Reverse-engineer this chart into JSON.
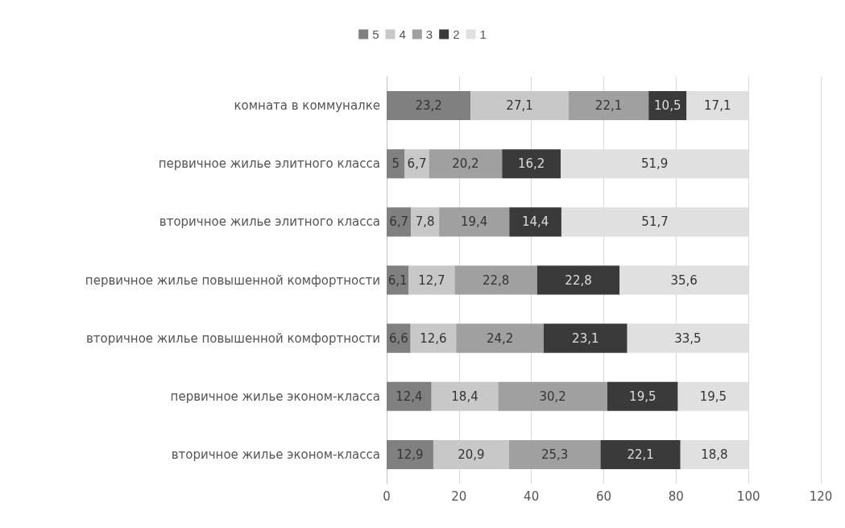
{
  "chart_data": {
    "type": "bar",
    "orientation": "horizontal",
    "stacked": true,
    "legend": "top",
    "grid": "x",
    "categories": [
      "комната в коммуналке",
      "первичное жилье элитного класса",
      "вторичное жилье элитного класса",
      "первичное жилье повышенной комфортности",
      "вторичное жилье повышенной комфортности",
      "первичное жилье эконом-класса",
      "вторичное жилье эконом-класса"
    ],
    "series": [
      {
        "name": "5",
        "color": "#808080",
        "values": [
          23.2,
          5,
          6.7,
          6.1,
          6.6,
          12.4,
          12.9
        ],
        "value_labels": [
          "23,2",
          "5",
          "6,7",
          "6,1",
          "6,6",
          "12,4",
          "12,9"
        ]
      },
      {
        "name": "4",
        "color": "#c8c8c8",
        "values": [
          27.1,
          6.7,
          7.8,
          12.7,
          12.6,
          18.4,
          20.9
        ],
        "value_labels": [
          "27,1",
          "6,7",
          "7,8",
          "12,7",
          "12,6",
          "18,4",
          "20,9"
        ]
      },
      {
        "name": "3",
        "color": "#a0a0a0",
        "values": [
          22.1,
          20.2,
          19.4,
          22.8,
          24.2,
          30.2,
          25.3
        ],
        "value_labels": [
          "22,1",
          "20,2",
          "19,4",
          "22,8",
          "24,2",
          "30,2",
          "25,3"
        ]
      },
      {
        "name": "2",
        "color": "#3a3a3a",
        "values": [
          10.5,
          16.2,
          14.4,
          22.8,
          23.1,
          19.5,
          22.1
        ],
        "value_labels": [
          "10,5",
          "16,2",
          "14,4",
          "22,8",
          "23,1",
          "19,5",
          "22,1"
        ]
      },
      {
        "name": "1",
        "color": "#e0e0e0",
        "values": [
          17.1,
          51.9,
          51.7,
          35.6,
          33.5,
          19.5,
          18.8
        ],
        "value_labels": [
          "17,1",
          "51,9",
          "51,7",
          "35,6",
          "33,5",
          "19,5",
          "18,8"
        ]
      }
    ],
    "xlim": [
      0,
      120
    ],
    "xticks": [
      0,
      20,
      40,
      60,
      80,
      100,
      120
    ]
  }
}
